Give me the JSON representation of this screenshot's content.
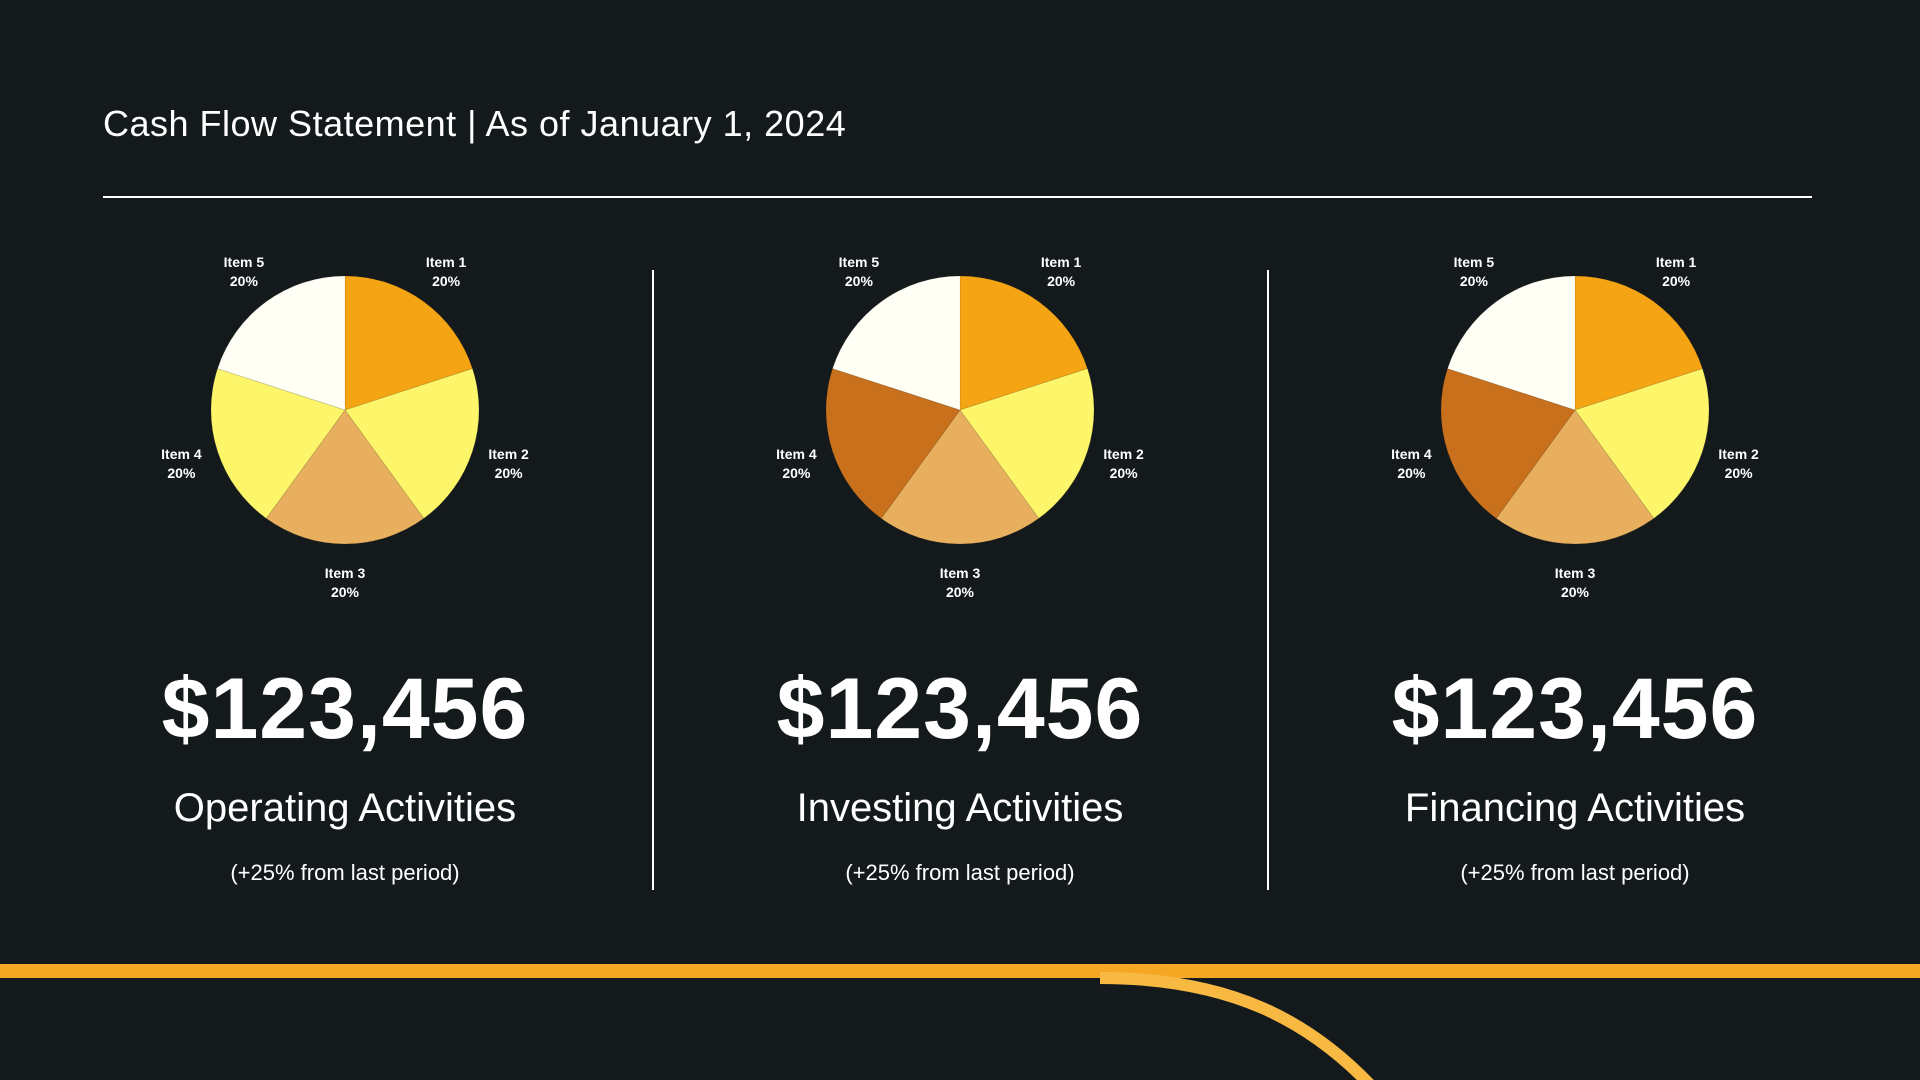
{
  "page": {
    "title": "Cash Flow Statement | As of January 1, 2024"
  },
  "colors": {
    "background": "#141a1c",
    "text": "#ffffff",
    "accent": "#f5a623",
    "item_palette": [
      "#f5a414",
      "#fdf66a",
      "#e8b05e",
      "#c8701c",
      "#fffff5"
    ],
    "item4_alt": "#fdf66a"
  },
  "panels": [
    {
      "amount": "$123,456",
      "title": "Operating Activities",
      "change": "(+25% from last period)"
    },
    {
      "amount": "$123,456",
      "title": "Investing Activities",
      "change": "(+25% from last period)"
    },
    {
      "amount": "$123,456",
      "title": "Financing Activities",
      "change": "(+25% from last period)"
    }
  ],
  "chart_data": [
    {
      "type": "pie",
      "title": "",
      "categories": [
        "Item 1",
        "Item 2",
        "Item 3",
        "Item 4",
        "Item 5"
      ],
      "values": [
        20,
        20,
        20,
        20,
        20
      ],
      "value_labels": [
        "20%",
        "20%",
        "20%",
        "20%",
        "20%"
      ],
      "colors": [
        "#f5a414",
        "#fdf66a",
        "#e8b05e",
        "#fdf66a",
        "#fffff5"
      ]
    },
    {
      "type": "pie",
      "title": "",
      "categories": [
        "Item 1",
        "Item 2",
        "Item 3",
        "Item 4",
        "Item 5"
      ],
      "values": [
        20,
        20,
        20,
        20,
        20
      ],
      "value_labels": [
        "20%",
        "20%",
        "20%",
        "20%",
        "20%"
      ],
      "colors": [
        "#f5a414",
        "#fdf66a",
        "#e8b05e",
        "#c8701c",
        "#fffff5"
      ]
    },
    {
      "type": "pie",
      "title": "",
      "categories": [
        "Item 1",
        "Item 2",
        "Item 3",
        "Item 4",
        "Item 5"
      ],
      "values": [
        20,
        20,
        20,
        20,
        20
      ],
      "value_labels": [
        "20%",
        "20%",
        "20%",
        "20%",
        "20%"
      ],
      "colors": [
        "#f5a414",
        "#fdf66a",
        "#e8b05e",
        "#c8701c",
        "#fffff5"
      ]
    }
  ]
}
